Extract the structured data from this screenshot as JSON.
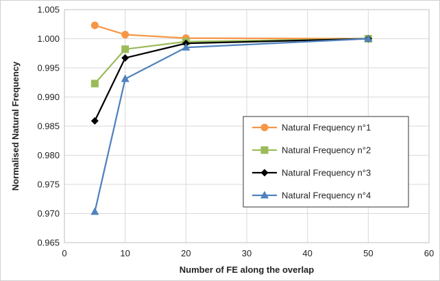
{
  "chart_data": {
    "type": "line",
    "title": "",
    "xlabel": "Number of FE along the overlap",
    "ylabel": "Normalised Natural Frequency",
    "xlim": [
      0,
      60
    ],
    "ylim": [
      0.965,
      1.005
    ],
    "xticks": [
      0,
      10,
      20,
      30,
      40,
      50,
      60
    ],
    "xtick_labels": [
      "0",
      "10",
      "20",
      "30",
      "40",
      "50",
      "60"
    ],
    "yticks": [
      0.965,
      0.97,
      0.975,
      0.98,
      0.985,
      0.99,
      0.995,
      1.0,
      1.005
    ],
    "ytick_labels": [
      "0.965",
      "0.970",
      "0.975",
      "0.980",
      "0.985",
      "0.990",
      "0.995",
      "1.000",
      "1.005"
    ],
    "grid": true,
    "legend_position": "right",
    "x": [
      5,
      10,
      20,
      50
    ],
    "series": [
      {
        "name": "Natural Frequency n°1",
        "values": [
          1.0023,
          1.0007,
          1.0001,
          1.0
        ],
        "color": "#F79646",
        "marker": "circle"
      },
      {
        "name": "Natural Frequency n°2",
        "values": [
          0.9923,
          0.9982,
          0.9995,
          1.0
        ],
        "color": "#9BBB59",
        "marker": "square"
      },
      {
        "name": "Natural Frequency n°3",
        "values": [
          0.9859,
          0.9967,
          0.9992,
          1.0
        ],
        "color": "#000000",
        "marker": "diamond"
      },
      {
        "name": "Natural Frequency n°4",
        "values": [
          0.9703,
          0.9931,
          0.9985,
          1.0
        ],
        "color": "#4F81BD",
        "marker": "triangle"
      }
    ]
  }
}
